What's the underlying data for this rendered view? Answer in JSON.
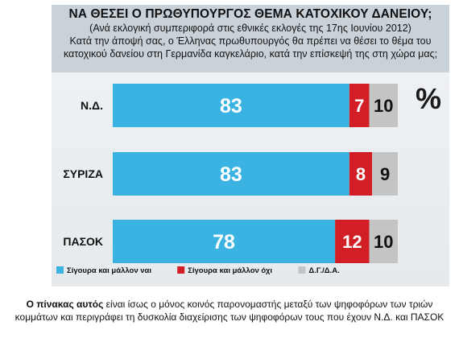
{
  "header": {
    "title": "ΝΑ ΘΕΣΕΙ Ο ΠΡΩΘΥΠΟΥΡΓΟΣ ΘΕΜΑ ΚΑΤΟΧΙΚΟΥ ΔΑΝΕΙΟΥ;",
    "subtitle_1": "(Ανά εκλογική συμπεριφορά στις εθνικές εκλογές της 17ης Ιουνίου 2012)",
    "subtitle_2": "Κατά την άποψή σας, ο Έλληνας πρωθυπουργός θα πρέπει να θέσει το θέμα του",
    "subtitle_3": "κατοχικού δανείου στη Γερμανίδα καγκελάριο, κατά την επίσκεψή της  στη χώρα μας;"
  },
  "chart_data": {
    "type": "bar",
    "orientation": "horizontal",
    "stacked": true,
    "unit_symbol": "%",
    "categories": [
      "Ν.Δ.",
      "ΣΥΡΙΖΑ",
      "ΠΑΣΟΚ"
    ],
    "series": [
      {
        "name": "Σίγουρα και μάλλον ναι",
        "color": "#3ab3e2",
        "values": [
          83,
          83,
          78
        ]
      },
      {
        "name": "Σίγουρα και μάλλον όχι",
        "color": "#d21f26",
        "values": [
          7,
          8,
          12
        ]
      },
      {
        "name": "Δ.Γ./Δ.Α.",
        "color": "#c4c4c4",
        "values": [
          10,
          9,
          10
        ]
      }
    ],
    "xlim": [
      0,
      100
    ],
    "legend_position": "bottom-left"
  },
  "footer": {
    "lead": "Ο πίνακας αυτός",
    "text": " είναι ίσως ο μόνος κοινός παρονομαστής μεταξύ των ψηφοφόρων των τριών",
    "line2": "κομμάτων και περιγράφει τη δυσκολία διαχείρισης των ψηφοφόρων τους που έχουν Ν.Δ. και ΠΑΣΟΚ"
  }
}
